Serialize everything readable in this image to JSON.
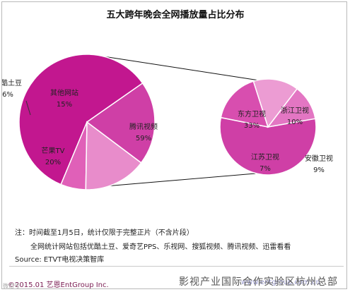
{
  "chart_data": [
    {
      "type": "pie",
      "title": "五大跨年晚会全网播放量占比分布",
      "categories": [
        "腾讯视频",
        "优酷土豆",
        "其他网站",
        "芒果TV"
      ],
      "values": [
        59,
        6,
        15,
        20
      ],
      "value_labels": [
        "59%",
        "6%",
        "15%",
        "20%"
      ],
      "colors": [
        "#c2178f",
        "#e060b8",
        "#e88ccb",
        "#cf3fa6"
      ]
    },
    {
      "type": "pie",
      "title": "",
      "categories": [
        "东方卫视",
        "浙江卫视",
        "安徽卫视",
        "江苏卫视"
      ],
      "values": [
        33,
        10,
        9,
        7
      ],
      "value_labels": [
        "33%",
        "10%",
        "9%",
        "7%"
      ],
      "colors": [
        "#cf3fa6",
        "#d84eaf",
        "#ec9cd3",
        "#e376c3"
      ]
    }
  ],
  "notes": {
    "line1": "注：时间截至1月5日，统计仅限于完整正片（不含片段）",
    "line2": "全网统计网站包括优酷土豆、爱奇艺PPS、乐视网、搜狐视频、腾讯视频、迅雷看看",
    "line3": "Source: ETVT电视决策智库"
  },
  "footer": {
    "copyright": "©2015.01 艺恩EntGroup Inc.",
    "watermark": "影视产业国际合作实验区杭州总部",
    "watermark_url": "www.entgroup.com.cn",
    "badge": "微信号"
  }
}
